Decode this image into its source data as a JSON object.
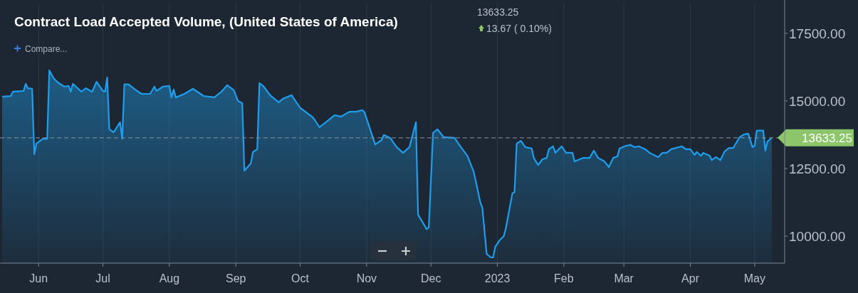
{
  "chart_data": {
    "type": "area",
    "title": "Contract Load Accepted Volume, (United States of America)",
    "annotations": [
      "13633.25",
      "13.67 ( 0.10%)",
      "Compare..."
    ],
    "x": [
      "2022-05-15",
      "2022-05-19",
      "2022-05-20",
      "2022-05-25",
      "2022-05-26",
      "2022-05-27",
      "2022-05-29",
      "2022-05-30",
      "2022-05-31",
      "2022-06-03",
      "2022-06-05",
      "2022-06-06",
      "2022-06-08",
      "2022-06-10",
      "2022-06-13",
      "2022-06-15",
      "2022-06-16",
      "2022-06-17",
      "2022-06-21",
      "2022-06-23",
      "2022-06-26",
      "2022-06-28",
      "2022-07-01",
      "2022-07-02",
      "2022-07-03",
      "2022-07-04",
      "2022-07-06",
      "2022-07-09",
      "2022-07-10",
      "2022-07-11",
      "2022-07-13",
      "2022-07-16",
      "2022-07-19",
      "2022-07-23",
      "2022-07-25",
      "2022-07-26",
      "2022-07-29",
      "2022-08-01",
      "2022-08-02",
      "2022-08-03",
      "2022-08-04",
      "2022-08-08",
      "2022-08-12",
      "2022-08-17",
      "2022-08-22",
      "2022-08-25",
      "2022-08-28",
      "2022-08-31",
      "2022-09-02",
      "2022-09-04",
      "2022-09-05",
      "2022-09-08",
      "2022-09-09",
      "2022-09-11",
      "2022-09-12",
      "2022-09-14",
      "2022-09-17",
      "2022-09-21",
      "2022-09-23",
      "2022-09-27",
      "2022-10-01",
      "2022-10-07",
      "2022-10-10",
      "2022-10-13",
      "2022-10-17",
      "2022-10-20",
      "2022-10-24",
      "2022-10-27",
      "2022-10-30",
      "2022-10-31",
      "2022-11-05",
      "2022-11-08",
      "2022-11-09",
      "2022-11-12",
      "2022-11-15",
      "2022-11-18",
      "2022-11-21",
      "2022-11-24",
      "2022-11-25",
      "2022-11-26",
      "2022-11-29",
      "2022-11-30",
      "2022-12-02",
      "2022-12-04",
      "2022-12-07",
      "2022-12-12",
      "2022-12-15",
      "2022-12-18",
      "2022-12-21",
      "2022-12-24",
      "2022-12-25",
      "2022-12-27",
      "2022-12-29",
      "2022-12-30",
      "2022-12-31",
      "2023-01-02",
      "2023-01-04",
      "2023-01-05",
      "2023-01-08",
      "2023-01-09",
      "2023-01-10",
      "2023-01-12",
      "2023-01-14",
      "2023-01-17",
      "2023-01-18",
      "2023-01-20",
      "2023-01-22",
      "2023-01-24",
      "2023-01-25",
      "2023-01-27",
      "2023-01-28",
      "2023-01-31",
      "2023-02-02",
      "2023-02-05",
      "2023-02-06",
      "2023-02-10",
      "2023-02-13",
      "2023-02-15",
      "2023-02-17",
      "2023-02-20",
      "2023-02-22",
      "2023-02-24",
      "2023-02-26",
      "2023-02-27",
      "2023-03-02",
      "2023-03-04",
      "2023-03-06",
      "2023-03-08",
      "2023-03-11",
      "2023-03-13",
      "2023-03-17",
      "2023-03-19",
      "2023-03-21",
      "2023-03-23",
      "2023-03-28",
      "2023-03-30",
      "2023-04-01",
      "2023-04-03",
      "2023-04-04",
      "2023-04-06",
      "2023-04-07",
      "2023-04-10",
      "2023-04-11",
      "2023-04-13",
      "2023-04-15",
      "2023-04-17",
      "2023-04-19",
      "2023-04-21",
      "2023-04-24",
      "2023-04-26",
      "2023-04-28",
      "2023-04-30",
      "2023-05-01",
      "2023-05-02",
      "2023-05-05",
      "2023-05-06",
      "2023-05-07",
      "2023-05-09"
    ],
    "series": [
      {
        "color": "#1e9eec",
        "values": [
          15160,
          15180,
          15340,
          15370,
          15630,
          15470,
          15450,
          13030,
          13420,
          13600,
          13600,
          16130,
          15840,
          15680,
          15530,
          15550,
          15340,
          15630,
          15340,
          15470,
          15340,
          15710,
          15370,
          15340,
          15870,
          13950,
          13840,
          14210,
          13600,
          15610,
          15610,
          15420,
          15260,
          15260,
          15530,
          15370,
          15530,
          15550,
          15130,
          15420,
          15130,
          15260,
          15450,
          15180,
          15130,
          15320,
          15580,
          15400,
          15000,
          14920,
          12420,
          12690,
          13110,
          13210,
          15660,
          15530,
          15210,
          14950,
          15080,
          15210,
          14740,
          14390,
          14030,
          14210,
          14470,
          14420,
          14600,
          14600,
          14660,
          14580,
          13390,
          13550,
          13740,
          13630,
          13290,
          13080,
          13290,
          14210,
          10790,
          10660,
          10260,
          10310,
          13820,
          13950,
          13660,
          13630,
          13290,
          12970,
          12370,
          11260,
          11050,
          9340,
          9210,
          9210,
          9600,
          9840,
          10000,
          10310,
          11580,
          11630,
          13420,
          13520,
          13290,
          13240,
          12890,
          12630,
          12840,
          12890,
          13210,
          13320,
          13080,
          13320,
          13080,
          13080,
          12760,
          12890,
          12890,
          13160,
          12890,
          12760,
          12550,
          12890,
          12950,
          13240,
          13340,
          13370,
          13290,
          13320,
          13210,
          13080,
          12920,
          13080,
          13080,
          13210,
          13320,
          13210,
          13210,
          13000,
          13110,
          12970,
          13080,
          12970,
          12810,
          12920,
          12810,
          13130,
          13260,
          13260,
          13660,
          13760,
          13790,
          13290,
          13340,
          13900,
          13900,
          13160,
          13500,
          13630
        ]
      }
    ],
    "xlim": [
      "2022-05-14",
      "2023-05-15"
    ],
    "xticks": [
      {
        "value": "2022-06-01",
        "label": "Jun"
      },
      {
        "value": "2022-07-01",
        "label": "Jul"
      },
      {
        "value": "2022-08-01",
        "label": "Aug"
      },
      {
        "value": "2022-09-01",
        "label": "Sep"
      },
      {
        "value": "2022-10-01",
        "label": "Oct"
      },
      {
        "value": "2022-11-01",
        "label": "Nov"
      },
      {
        "value": "2022-12-01",
        "label": "Dec"
      },
      {
        "value": "2023-01-01",
        "label": "2023"
      },
      {
        "value": "2023-02-01",
        "label": "Feb"
      },
      {
        "value": "2023-03-01",
        "label": "Mar"
      },
      {
        "value": "2023-04-01",
        "label": "Apr"
      },
      {
        "value": "2023-05-01",
        "label": "May"
      }
    ],
    "ylim": [
      9000,
      18600
    ],
    "yticks": [
      {
        "value": 10000,
        "label": "10000.00"
      },
      {
        "value": 12500,
        "label": "12500.00"
      },
      {
        "value": 15000,
        "label": "15000.00"
      },
      {
        "value": 17500,
        "label": "17500.00"
      }
    ],
    "ref_lines": [
      {
        "axis": "y",
        "value": 13633.25,
        "label": "13633.25",
        "line_style": "dashed"
      }
    ],
    "grid": "x"
  }
}
